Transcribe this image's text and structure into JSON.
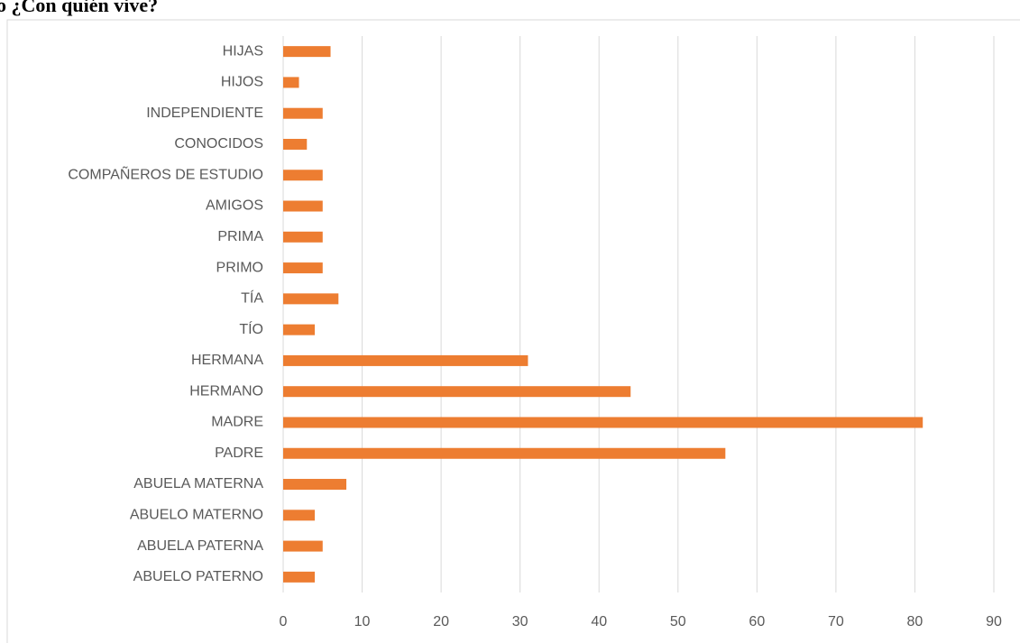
{
  "chart_data": {
    "type": "bar",
    "orientation": "horizontal",
    "title": "o ¿Con quién vive?",
    "categories": [
      "ABUELO PATERNO",
      "ABUELA PATERNA",
      "ABUELO MATERNO",
      "ABUELA MATERNA",
      "PADRE",
      "MADRE",
      "HERMANO",
      "HERMANA",
      "TÍO",
      "TÍA",
      "PRIMO",
      "PRIMA",
      "AMIGOS",
      "COMPAÑEROS DE ESTUDIO",
      "CONOCIDOS",
      "INDEPENDIENTE",
      "HIJOS",
      "HIJAS"
    ],
    "values": [
      4,
      5,
      4,
      8,
      56,
      81,
      44,
      31,
      4,
      7,
      5,
      5,
      5,
      5,
      3,
      5,
      2,
      6
    ],
    "color": "#ed7d31",
    "xlim": [
      0,
      90
    ],
    "xticks": [
      0,
      10,
      20,
      30,
      40,
      50,
      60,
      70,
      80,
      90
    ],
    "grid": true
  }
}
